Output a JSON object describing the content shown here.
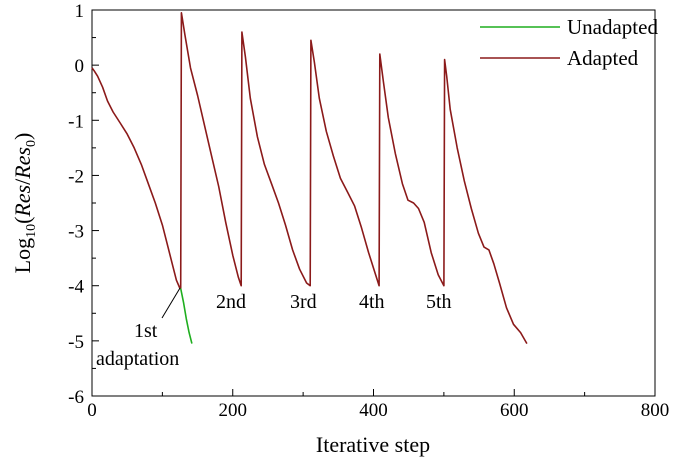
{
  "chart_data": {
    "type": "line",
    "xlabel": "Iterative step",
    "ylabel": {
      "prefix": "Log",
      "subscript": "10",
      "open": "(",
      "num": "Res",
      "slash": "/",
      "den": "Res",
      "den_sub": "0",
      "close": ")"
    },
    "xlim": [
      0,
      800
    ],
    "ylim": [
      -6,
      1
    ],
    "xticks": [
      0,
      200,
      400,
      600,
      800
    ],
    "xtick_labels": [
      "0",
      "200",
      "400",
      "600",
      "800"
    ],
    "yticks": [
      1,
      0,
      -1,
      -2,
      -3,
      -4,
      -5,
      -6
    ],
    "ytick_labels": [
      "1",
      "0",
      "-1",
      "-2",
      "-3",
      "-4",
      "-5",
      "-6"
    ],
    "legend": {
      "placement": "top-right"
    },
    "series": [
      {
        "name": "Unadapted",
        "color": "#1fae1f",
        "x": [
          126,
          130,
          134,
          138,
          142
        ],
        "y": [
          -4.05,
          -4.3,
          -4.6,
          -4.85,
          -5.05
        ]
      },
      {
        "name": "Adapted",
        "color": "#8b1a1a",
        "x": [
          0,
          3,
          8,
          15,
          22,
          30,
          40,
          50,
          60,
          70,
          80,
          90,
          100,
          108,
          115,
          120,
          125,
          126,
          127,
          132,
          140,
          150,
          160,
          170,
          180,
          190,
          200,
          208,
          212,
          213,
          218,
          225,
          235,
          245,
          255,
          265,
          275,
          285,
          295,
          305,
          310,
          311,
          316,
          323,
          333,
          343,
          353,
          363,
          373,
          383,
          393,
          403,
          408,
          409,
          414,
          421,
          431,
          441,
          449,
          457,
          464,
          472,
          482,
          492,
          500,
          501,
          504,
          509,
          519,
          529,
          539,
          549,
          557,
          564,
          571,
          579,
          589,
          599,
          609,
          618
        ],
        "y": [
          -0.05,
          -0.1,
          -0.2,
          -0.4,
          -0.65,
          -0.85,
          -1.05,
          -1.25,
          -1.5,
          -1.8,
          -2.15,
          -2.5,
          -2.9,
          -3.3,
          -3.65,
          -3.9,
          -4.05,
          -4.05,
          0.95,
          0.55,
          -0.05,
          -0.55,
          -1.1,
          -1.65,
          -2.2,
          -2.85,
          -3.45,
          -3.85,
          -4.0,
          0.6,
          0.15,
          -0.6,
          -1.3,
          -1.8,
          -2.15,
          -2.5,
          -2.9,
          -3.35,
          -3.7,
          -3.95,
          -4.0,
          0.45,
          0.05,
          -0.6,
          -1.2,
          -1.65,
          -2.05,
          -2.3,
          -2.55,
          -2.95,
          -3.4,
          -3.8,
          -4.0,
          0.2,
          -0.3,
          -0.95,
          -1.6,
          -2.15,
          -2.45,
          -2.5,
          -2.6,
          -2.85,
          -3.4,
          -3.8,
          -4.0,
          0.1,
          -0.2,
          -0.8,
          -1.5,
          -2.1,
          -2.6,
          -3.05,
          -3.3,
          -3.35,
          -3.6,
          -3.95,
          -4.4,
          -4.7,
          -4.85,
          -5.05
        ]
      }
    ],
    "annotations": [
      {
        "lines": [
          "1st",
          "adaptation"
        ]
      },
      {
        "lines": [
          "2nd"
        ]
      },
      {
        "lines": [
          "3rd"
        ]
      },
      {
        "lines": [
          "4th"
        ]
      },
      {
        "lines": [
          "5th"
        ]
      }
    ]
  }
}
